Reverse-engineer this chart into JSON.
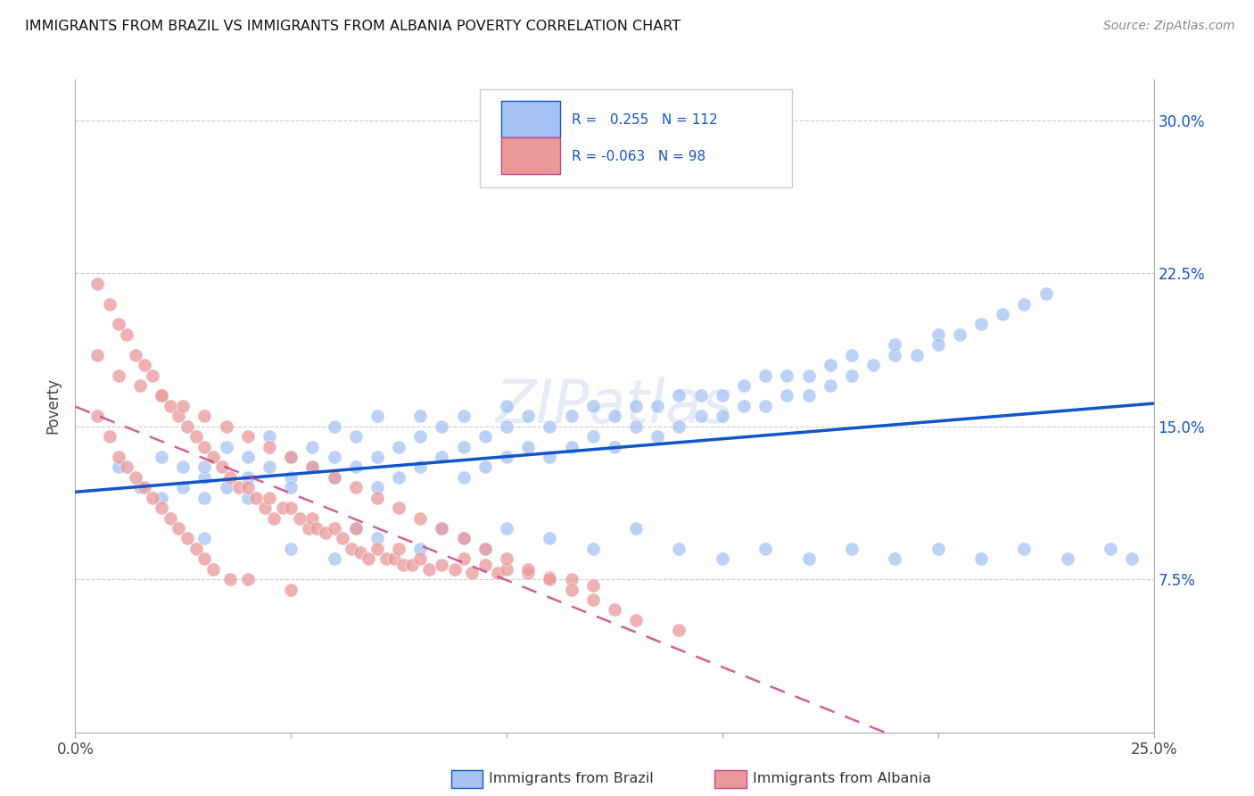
{
  "title": "IMMIGRANTS FROM BRAZIL VS IMMIGRANTS FROM ALBANIA POVERTY CORRELATION CHART",
  "source": "Source: ZipAtlas.com",
  "ylabel": "Poverty",
  "ytick_labels": [
    "7.5%",
    "15.0%",
    "22.5%",
    "30.0%"
  ],
  "ytick_values": [
    0.075,
    0.15,
    0.225,
    0.3
  ],
  "xlim": [
    0.0,
    0.25
  ],
  "ylim": [
    0.0,
    0.32
  ],
  "brazil_color": "#a4c2f4",
  "albania_color": "#ea9999",
  "brazil_line_color": "#1155cc",
  "albania_line_color": "#cc4488",
  "brazil_R": 0.255,
  "brazil_N": 112,
  "albania_R": -0.063,
  "albania_N": 98,
  "watermark": "ZIPatlas",
  "legend_label_brazil": "Immigrants from Brazil",
  "legend_label_albania": "Immigrants from Albania",
  "brazil_scatter_x": [
    0.01,
    0.015,
    0.02,
    0.02,
    0.025,
    0.025,
    0.03,
    0.03,
    0.03,
    0.035,
    0.035,
    0.04,
    0.04,
    0.04,
    0.045,
    0.045,
    0.05,
    0.05,
    0.05,
    0.055,
    0.055,
    0.06,
    0.06,
    0.06,
    0.065,
    0.065,
    0.07,
    0.07,
    0.07,
    0.075,
    0.075,
    0.08,
    0.08,
    0.08,
    0.085,
    0.085,
    0.09,
    0.09,
    0.09,
    0.095,
    0.095,
    0.1,
    0.1,
    0.1,
    0.105,
    0.105,
    0.11,
    0.11,
    0.115,
    0.115,
    0.12,
    0.12,
    0.125,
    0.125,
    0.13,
    0.13,
    0.135,
    0.135,
    0.14,
    0.14,
    0.145,
    0.145,
    0.15,
    0.15,
    0.155,
    0.155,
    0.16,
    0.16,
    0.165,
    0.165,
    0.17,
    0.17,
    0.175,
    0.175,
    0.18,
    0.18,
    0.185,
    0.19,
    0.19,
    0.195,
    0.2,
    0.2,
    0.205,
    0.21,
    0.215,
    0.22,
    0.225,
    0.03,
    0.05,
    0.06,
    0.065,
    0.07,
    0.08,
    0.085,
    0.09,
    0.095,
    0.1,
    0.11,
    0.12,
    0.13,
    0.14,
    0.15,
    0.16,
    0.17,
    0.18,
    0.19,
    0.2,
    0.21,
    0.22,
    0.23,
    0.24,
    0.245
  ],
  "brazil_scatter_y": [
    0.13,
    0.12,
    0.135,
    0.115,
    0.12,
    0.13,
    0.125,
    0.115,
    0.13,
    0.12,
    0.14,
    0.125,
    0.135,
    0.115,
    0.13,
    0.145,
    0.125,
    0.135,
    0.12,
    0.13,
    0.14,
    0.125,
    0.135,
    0.15,
    0.13,
    0.145,
    0.12,
    0.135,
    0.155,
    0.125,
    0.14,
    0.13,
    0.145,
    0.155,
    0.135,
    0.15,
    0.125,
    0.14,
    0.155,
    0.13,
    0.145,
    0.135,
    0.15,
    0.16,
    0.14,
    0.155,
    0.135,
    0.15,
    0.14,
    0.155,
    0.145,
    0.16,
    0.14,
    0.155,
    0.15,
    0.16,
    0.145,
    0.16,
    0.15,
    0.165,
    0.155,
    0.165,
    0.155,
    0.165,
    0.16,
    0.17,
    0.16,
    0.175,
    0.165,
    0.175,
    0.165,
    0.175,
    0.17,
    0.18,
    0.175,
    0.185,
    0.18,
    0.185,
    0.19,
    0.185,
    0.195,
    0.19,
    0.195,
    0.2,
    0.205,
    0.21,
    0.215,
    0.095,
    0.09,
    0.085,
    0.1,
    0.095,
    0.09,
    0.1,
    0.095,
    0.09,
    0.1,
    0.095,
    0.09,
    0.1,
    0.09,
    0.085,
    0.09,
    0.085,
    0.09,
    0.085,
    0.09,
    0.085,
    0.09,
    0.085,
    0.09,
    0.085
  ],
  "albania_scatter_x": [
    0.005,
    0.005,
    0.008,
    0.008,
    0.01,
    0.01,
    0.012,
    0.012,
    0.014,
    0.014,
    0.016,
    0.016,
    0.018,
    0.018,
    0.02,
    0.02,
    0.022,
    0.022,
    0.024,
    0.024,
    0.026,
    0.026,
    0.028,
    0.028,
    0.03,
    0.03,
    0.032,
    0.032,
    0.034,
    0.036,
    0.036,
    0.038,
    0.04,
    0.04,
    0.042,
    0.044,
    0.045,
    0.046,
    0.048,
    0.05,
    0.05,
    0.052,
    0.054,
    0.055,
    0.056,
    0.058,
    0.06,
    0.062,
    0.064,
    0.065,
    0.066,
    0.068,
    0.07,
    0.072,
    0.074,
    0.075,
    0.076,
    0.078,
    0.08,
    0.082,
    0.085,
    0.088,
    0.09,
    0.092,
    0.095,
    0.098,
    0.1,
    0.105,
    0.11,
    0.115,
    0.12,
    0.005,
    0.01,
    0.015,
    0.02,
    0.025,
    0.03,
    0.035,
    0.04,
    0.045,
    0.05,
    0.055,
    0.06,
    0.065,
    0.07,
    0.075,
    0.08,
    0.085,
    0.09,
    0.095,
    0.1,
    0.105,
    0.11,
    0.115,
    0.12,
    0.125,
    0.13,
    0.14
  ],
  "albania_scatter_y": [
    0.22,
    0.155,
    0.21,
    0.145,
    0.2,
    0.135,
    0.195,
    0.13,
    0.185,
    0.125,
    0.18,
    0.12,
    0.175,
    0.115,
    0.165,
    0.11,
    0.16,
    0.105,
    0.155,
    0.1,
    0.15,
    0.095,
    0.145,
    0.09,
    0.14,
    0.085,
    0.135,
    0.08,
    0.13,
    0.125,
    0.075,
    0.12,
    0.12,
    0.075,
    0.115,
    0.11,
    0.115,
    0.105,
    0.11,
    0.11,
    0.07,
    0.105,
    0.1,
    0.105,
    0.1,
    0.098,
    0.1,
    0.095,
    0.09,
    0.1,
    0.088,
    0.085,
    0.09,
    0.085,
    0.085,
    0.09,
    0.082,
    0.082,
    0.085,
    0.08,
    0.082,
    0.08,
    0.085,
    0.078,
    0.082,
    0.078,
    0.08,
    0.078,
    0.076,
    0.075,
    0.072,
    0.185,
    0.175,
    0.17,
    0.165,
    0.16,
    0.155,
    0.15,
    0.145,
    0.14,
    0.135,
    0.13,
    0.125,
    0.12,
    0.115,
    0.11,
    0.105,
    0.1,
    0.095,
    0.09,
    0.085,
    0.08,
    0.075,
    0.07,
    0.065,
    0.06,
    0.055,
    0.05
  ]
}
